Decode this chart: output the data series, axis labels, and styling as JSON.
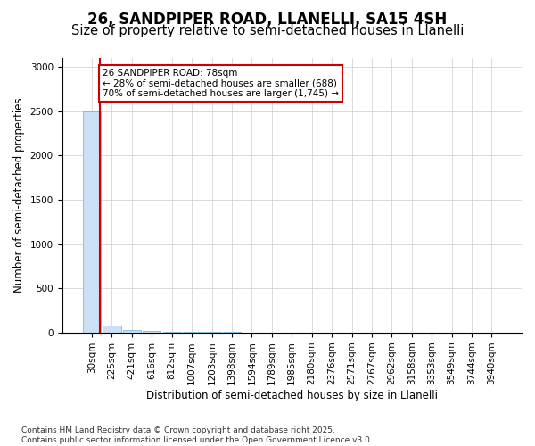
{
  "title": "26, SANDPIPER ROAD, LLANELLI, SA15 4SH",
  "subtitle": "Size of property relative to semi-detached houses in Llanelli",
  "xlabel": "Distribution of semi-detached houses by size in Llanelli",
  "ylabel": "Number of semi-detached properties",
  "bin_labels": [
    "30sqm",
    "225sqm",
    "421sqm",
    "616sqm",
    "812sqm",
    "1007sqm",
    "1203sqm",
    "1398sqm",
    "1594sqm",
    "1789sqm",
    "1985sqm",
    "2180sqm",
    "2376sqm",
    "2571sqm",
    "2767sqm",
    "2962sqm",
    "3158sqm",
    "3353sqm",
    "3549sqm",
    "3744sqm",
    "3940sqm"
  ],
  "bar_heights": [
    2500,
    80,
    30,
    15,
    10,
    8,
    6,
    5,
    4,
    4,
    3,
    3,
    3,
    2,
    2,
    2,
    2,
    2,
    2,
    2,
    1
  ],
  "bar_color": "#cce0f5",
  "bar_edge_color": "#6aaed6",
  "annotation_text": "26 SANDPIPER ROAD: 78sqm\n← 28% of semi-detached houses are smaller (688)\n70% of semi-detached houses are larger (1,745) →",
  "annotation_box_color": "#ffffff",
  "annotation_border_color": "#cc0000",
  "red_line_color": "#cc0000",
  "footnote": "Contains HM Land Registry data © Crown copyright and database right 2025.\nContains public sector information licensed under the Open Government Licence v3.0.",
  "ylim": [
    0,
    3100
  ],
  "red_line_x": 0.38,
  "title_fontsize": 12,
  "subtitle_fontsize": 10.5,
  "label_fontsize": 8.5,
  "tick_fontsize": 7.5,
  "annotation_fontsize": 7.5,
  "footnote_fontsize": 6.5
}
